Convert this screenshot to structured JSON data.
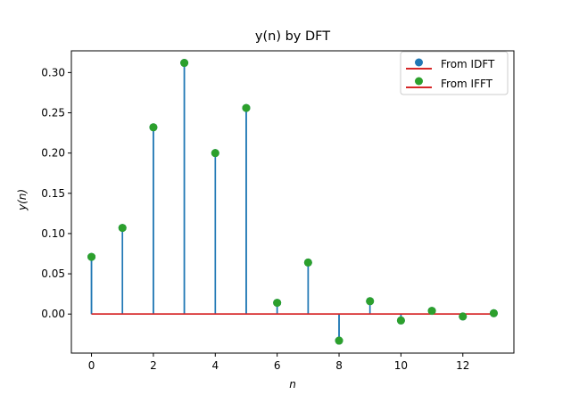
{
  "chart_data": {
    "type": "stem",
    "title": "y(n) by DFT",
    "xlabel": "n",
    "ylabel": "y(n)",
    "xlim": [
      -0.65,
      13.65
    ],
    "ylim": [
      -0.0485,
      0.327
    ],
    "x_ticks": [
      0,
      2,
      4,
      6,
      8,
      10,
      12
    ],
    "x_tick_labels": [
      "0",
      "2",
      "4",
      "6",
      "8",
      "10",
      "12"
    ],
    "y_ticks": [
      0.0,
      0.05,
      0.1,
      0.15,
      0.2,
      0.25,
      0.3
    ],
    "y_tick_labels": [
      "0.00",
      "0.05",
      "0.10",
      "0.15",
      "0.20",
      "0.25",
      "0.30"
    ],
    "grid": false,
    "legend_position": "top-right",
    "x": [
      0,
      1,
      2,
      3,
      4,
      5,
      6,
      7,
      8,
      9,
      10,
      11,
      12,
      13
    ],
    "series": [
      {
        "name": "From IDFT",
        "marker_color": "#1f77b4",
        "stem_color": "#1f77b4",
        "baseline_color": "#d62728",
        "values": [
          0.071,
          0.107,
          0.232,
          0.312,
          0.2,
          0.256,
          0.014,
          0.064,
          -0.033,
          0.016,
          -0.008,
          0.004,
          -0.003,
          0.001
        ]
      },
      {
        "name": "From IFFT",
        "marker_color": "#2ca02c",
        "stem_color": "#2ca02c",
        "baseline_color": "#d62728",
        "values": [
          0.071,
          0.107,
          0.232,
          0.312,
          0.2,
          0.256,
          0.014,
          0.064,
          -0.033,
          0.016,
          -0.008,
          0.004,
          -0.003,
          0.001
        ]
      }
    ]
  }
}
